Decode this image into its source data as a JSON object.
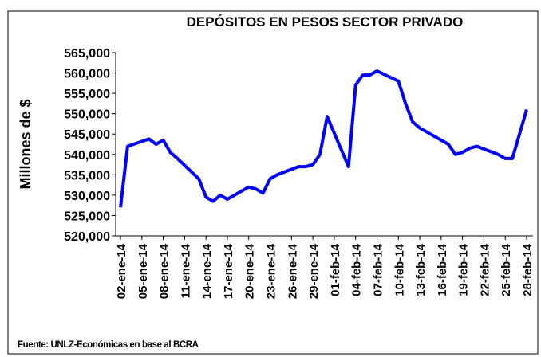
{
  "chart_data": {
    "type": "line",
    "title": "DEPÓSITOS EN PESOS SECTOR PRIVADO",
    "ylabel": "Millones de $",
    "source": "Fuente: UNLZ-Económicas en base al BCRA",
    "x": [
      "2014-01-02",
      "2014-01-03",
      "2014-01-06",
      "2014-01-07",
      "2014-01-08",
      "2014-01-09",
      "2014-01-10",
      "2014-01-13",
      "2014-01-14",
      "2014-01-15",
      "2014-01-16",
      "2014-01-17",
      "2014-01-20",
      "2014-01-21",
      "2014-01-22",
      "2014-01-23",
      "2014-01-24",
      "2014-01-27",
      "2014-01-28",
      "2014-01-29",
      "2014-01-30",
      "2014-01-31",
      "2014-02-03",
      "2014-02-04",
      "2014-02-05",
      "2014-02-06",
      "2014-02-07",
      "2014-02-10",
      "2014-02-11",
      "2014-02-12",
      "2014-02-13",
      "2014-02-14",
      "2014-02-17",
      "2014-02-18",
      "2014-02-19",
      "2014-02-20",
      "2014-02-21",
      "2014-02-24",
      "2014-02-25",
      "2014-02-26",
      "2014-02-27",
      "2014-02-28"
    ],
    "series": [
      {
        "name": "Depósitos",
        "color": "#0000ff",
        "values": [
          527000,
          542000,
          543800,
          542500,
          543500,
          540500,
          539000,
          534000,
          529500,
          528500,
          530000,
          529000,
          532000,
          531500,
          530500,
          534000,
          535000,
          537000,
          537000,
          537500,
          540000,
          549300,
          537000,
          557000,
          559500,
          559500,
          560500,
          558000,
          552500,
          548000,
          546500,
          545500,
          542500,
          540000,
          540500,
          541500,
          542000,
          540000,
          539000,
          539000,
          545000,
          551000
        ]
      }
    ],
    "xlim": [
      "2014-01-02",
      "2014-02-28"
    ],
    "xticks": [
      {
        "value": "2014-01-02",
        "label": "02-ene-14"
      },
      {
        "value": "2014-01-05",
        "label": "05-ene-14"
      },
      {
        "value": "2014-01-08",
        "label": "08-ene-14"
      },
      {
        "value": "2014-01-11",
        "label": "11-ene-14"
      },
      {
        "value": "2014-01-14",
        "label": "14-ene-14"
      },
      {
        "value": "2014-01-17",
        "label": "17-ene-14"
      },
      {
        "value": "2014-01-20",
        "label": "20-ene-14"
      },
      {
        "value": "2014-01-23",
        "label": "23-ene-14"
      },
      {
        "value": "2014-01-26",
        "label": "26-ene-14"
      },
      {
        "value": "2014-01-29",
        "label": "29-ene-14"
      },
      {
        "value": "2014-02-01",
        "label": "01-feb-14"
      },
      {
        "value": "2014-02-04",
        "label": "04-feb-14"
      },
      {
        "value": "2014-02-07",
        "label": "07-feb-14"
      },
      {
        "value": "2014-02-10",
        "label": "10-feb-14"
      },
      {
        "value": "2014-02-13",
        "label": "13-feb-14"
      },
      {
        "value": "2014-02-16",
        "label": "16-feb-14"
      },
      {
        "value": "2014-02-19",
        "label": "19-feb-14"
      },
      {
        "value": "2014-02-22",
        "label": "22-feb-14"
      },
      {
        "value": "2014-02-25",
        "label": "25-feb-14"
      },
      {
        "value": "2014-02-28",
        "label": "28-feb-14"
      }
    ],
    "ylim": [
      520000,
      565000
    ],
    "yticks": [
      {
        "value": 520000,
        "label": "520,000"
      },
      {
        "value": 525000,
        "label": "525,000"
      },
      {
        "value": 530000,
        "label": "530,000"
      },
      {
        "value": 535000,
        "label": "535,000"
      },
      {
        "value": 540000,
        "label": "540,000"
      },
      {
        "value": 545000,
        "label": "545,000"
      },
      {
        "value": 550000,
        "label": "550,000"
      },
      {
        "value": 555000,
        "label": "555,000"
      },
      {
        "value": 560000,
        "label": "560,000"
      },
      {
        "value": 565000,
        "label": "565,000"
      }
    ],
    "grid": false
  }
}
